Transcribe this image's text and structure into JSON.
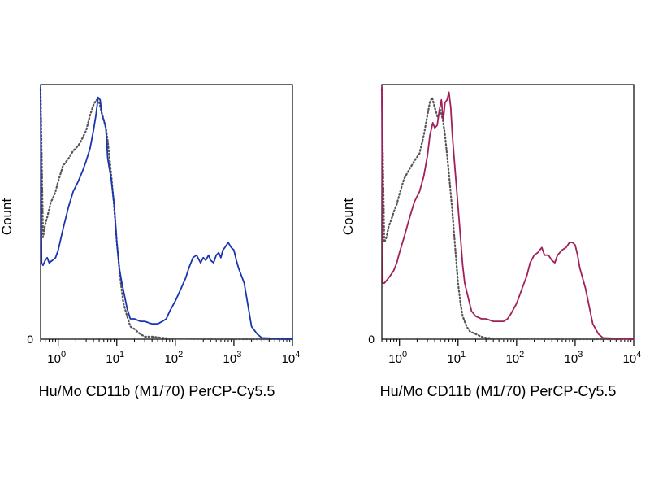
{
  "chart_data": [
    {
      "type": "line",
      "panel": "left",
      "xlabel": "Hu/Mo CD11b (M1/70) PerCP-Cy5.5",
      "ylabel": "Count",
      "x_scale": "log",
      "xlim": [
        0.5,
        10000
      ],
      "ylim": [
        0,
        100
      ],
      "x_ticks": [
        {
          "value": 1,
          "base": "10",
          "exp": "0"
        },
        {
          "value": 10,
          "base": "10",
          "exp": "1"
        },
        {
          "value": 100,
          "base": "10",
          "exp": "2"
        },
        {
          "value": 1000,
          "base": "10",
          "exp": "3"
        },
        {
          "value": 10000,
          "base": "10",
          "exp": "4"
        }
      ],
      "y_ticks": [
        {
          "value": 0,
          "label": "0"
        }
      ],
      "grid": false,
      "series": [
        {
          "style": "dotted",
          "color": "#555555",
          "x": [
            0.5,
            0.55,
            0.6,
            0.65,
            0.7,
            0.75,
            0.8,
            0.9,
            1.0,
            1.2,
            1.5,
            1.8,
            2.2,
            2.6,
            3.0,
            3.5,
            4.0,
            4.5,
            5.0,
            5.5,
            6.0,
            6.5,
            7.0,
            8.0,
            9.0,
            10,
            11,
            12,
            13,
            15,
            17,
            20,
            25,
            30,
            40,
            60,
            80,
            100,
            200,
            500,
            1000,
            10000
          ],
          "y": [
            98,
            40,
            45,
            48,
            51,
            54,
            55,
            58,
            62,
            68,
            71,
            74,
            76,
            79,
            82,
            88,
            92,
            94,
            93,
            89,
            86,
            83,
            78,
            65,
            52,
            38,
            28,
            20,
            14,
            9,
            5,
            4,
            2,
            1,
            1,
            0.5,
            0.3,
            0.2,
            0.1,
            0,
            0,
            0
          ]
        },
        {
          "style": "solid",
          "color": "#1a35b0",
          "x": [
            0.5,
            0.52,
            0.55,
            0.6,
            0.65,
            0.7,
            0.8,
            0.9,
            1.0,
            1.2,
            1.5,
            1.8,
            2.2,
            2.6,
            3.0,
            3.5,
            4.0,
            4.4,
            4.8,
            5.2,
            5.6,
            6.0,
            6.5,
            7.0,
            8.0,
            9.0,
            10,
            11,
            12,
            13,
            15,
            17,
            20,
            25,
            30,
            40,
            50,
            60,
            70,
            80,
            100,
            120,
            150,
            170,
            200,
            230,
            270,
            300,
            330,
            370,
            400,
            450,
            500,
            550,
            600,
            650,
            700,
            800,
            900,
            1000,
            1100,
            1200,
            1500,
            2000,
            2500,
            3000,
            10000
          ],
          "y": [
            99,
            30,
            29,
            31,
            32,
            30,
            31,
            32,
            35,
            43,
            52,
            58,
            62,
            66,
            70,
            75,
            82,
            88,
            95,
            94,
            88,
            86,
            83,
            71,
            63,
            53,
            38,
            28,
            23,
            19,
            12,
            8,
            8,
            7,
            7,
            6,
            6,
            7,
            8,
            11,
            15,
            19,
            24,
            28,
            32,
            33,
            30,
            32,
            31,
            33,
            31,
            30,
            33,
            34,
            32,
            35,
            36,
            38,
            36,
            35,
            31,
            28,
            22,
            5,
            2,
            0.5,
            0
          ]
        }
      ]
    },
    {
      "type": "line",
      "panel": "right",
      "xlabel": "Hu/Mo CD11b (M1/70) PerCP-Cy5.5",
      "ylabel": "Count",
      "x_scale": "log",
      "xlim": [
        0.5,
        10000
      ],
      "ylim": [
        0,
        100
      ],
      "x_ticks": [
        {
          "value": 1,
          "base": "10",
          "exp": "0"
        },
        {
          "value": 10,
          "base": "10",
          "exp": "1"
        },
        {
          "value": 100,
          "base": "10",
          "exp": "2"
        },
        {
          "value": 1000,
          "base": "10",
          "exp": "3"
        },
        {
          "value": 10000,
          "base": "10",
          "exp": "4"
        }
      ],
      "y_ticks": [
        {
          "value": 0,
          "label": "0"
        }
      ],
      "grid": false,
      "series": [
        {
          "style": "dotted",
          "color": "#555555",
          "x": [
            0.5,
            0.55,
            0.6,
            0.65,
            0.7,
            0.75,
            0.8,
            0.9,
            1.0,
            1.2,
            1.5,
            1.8,
            2.2,
            2.6,
            3.0,
            3.3,
            3.6,
            4.0,
            4.5,
            5.0,
            5.5,
            6.0,
            7.0,
            8.0,
            9.0,
            10,
            11,
            12,
            14,
            16,
            20,
            25,
            30,
            40,
            60,
            100,
            1000,
            10000
          ],
          "y": [
            98,
            38,
            40,
            44,
            46,
            48,
            50,
            53,
            57,
            63,
            67,
            70,
            73,
            80,
            88,
            93,
            95,
            91,
            87,
            90,
            86,
            80,
            65,
            50,
            35,
            22,
            14,
            9,
            5,
            3,
            2,
            1,
            0.5,
            0.3,
            0.2,
            0.1,
            0,
            0
          ]
        },
        {
          "style": "solid",
          "color": "#a0215a",
          "x": [
            0.5,
            0.52,
            0.55,
            0.6,
            0.7,
            0.8,
            0.9,
            1.0,
            1.2,
            1.5,
            1.8,
            2.2,
            2.6,
            3.0,
            3.3,
            3.7,
            4.0,
            4.4,
            4.8,
            5.2,
            5.6,
            6.0,
            6.5,
            7.0,
            7.5,
            8.0,
            9.0,
            10,
            11,
            12,
            13,
            15,
            17,
            20,
            25,
            30,
            40,
            50,
            60,
            70,
            80,
            100,
            120,
            150,
            170,
            200,
            230,
            270,
            300,
            350,
            400,
            450,
            500,
            600,
            700,
            800,
            900,
            1000,
            1100,
            1200,
            1500,
            2000,
            2500,
            3000,
            10000
          ],
          "y": [
            99,
            22,
            22,
            23,
            25,
            27,
            30,
            34,
            40,
            48,
            54,
            58,
            64,
            72,
            80,
            85,
            83,
            84,
            90,
            94,
            86,
            93,
            94,
            97,
            91,
            80,
            65,
            52,
            40,
            29,
            22,
            16,
            11,
            9,
            8,
            8,
            7,
            7,
            7,
            8,
            10,
            14,
            19,
            25,
            30,
            33,
            34,
            36,
            33,
            33,
            31,
            30,
            33,
            35,
            36,
            38,
            38,
            37,
            33,
            28,
            20,
            6,
            2,
            0.5,
            0
          ]
        }
      ]
    }
  ]
}
